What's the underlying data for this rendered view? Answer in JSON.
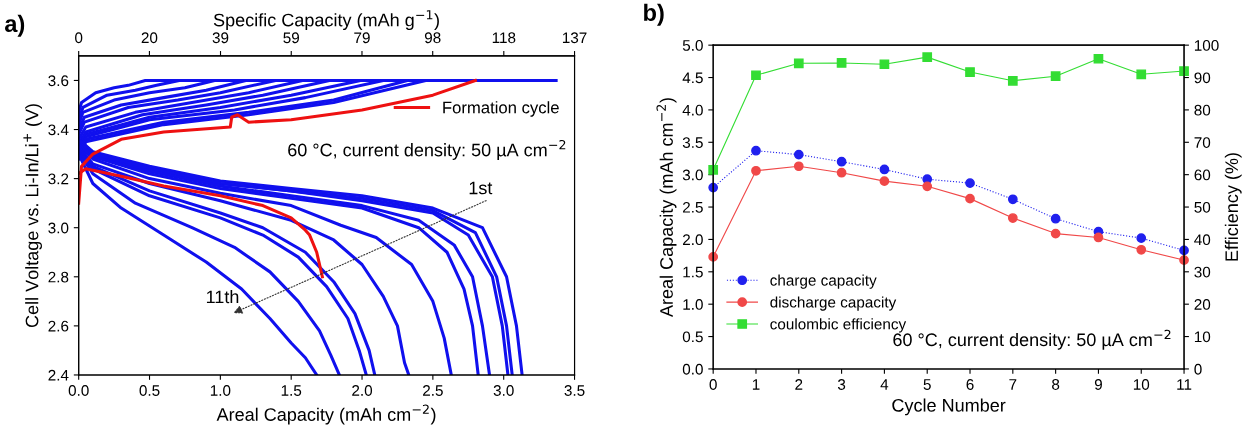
{
  "chart_data": [
    {
      "type": "line",
      "title": "a)",
      "xlabel": "Areal Capacity (mAh cm$^{−2}$)",
      "ylabel": "Cell Voltage vs. Li-In/Li$^{+}$ (V)",
      "x2label": "Specific Capacity (mAh g$^{−1}$)",
      "xlim": [
        0.0,
        3.5
      ],
      "xticks": [
        {
          "value": 0,
          "label": "0.0"
        },
        0.5,
        {
          "value": 1,
          "label": "1.0"
        },
        1.5,
        {
          "value": 2,
          "label": "2.0"
        },
        2.5,
        {
          "value": 3,
          "label": "3.0"
        },
        3.5
      ],
      "x2lim": [
        0,
        137.4
      ],
      "x2ticks": [
        0,
        {
          "value": 19.6,
          "label": "20"
        },
        {
          "value": 39.3,
          "label": "39"
        },
        {
          "value": 58.9,
          "label": "59"
        },
        {
          "value": 78.5,
          "label": "79"
        },
        {
          "value": 98.1,
          "label": "98"
        },
        {
          "value": 117.8,
          "label": "118"
        },
        {
          "value": 137.4,
          "label": "137"
        }
      ],
      "ylim": [
        2.4,
        3.7
      ],
      "yticks": [
        2.4,
        2.6,
        2.8,
        {
          "value": 3,
          "label": "3.0"
        },
        3.2,
        3.4,
        3.6
      ],
      "legend": "top right",
      "grid": false,
      "line_style": "solid",
      "annotations": [
        "60 °C, current density: 50 µA cm$^{−2}$",
        "1st",
        "11th"
      ],
      "series": [
        {
          "color": "#1010ee",
          "x": [
            0,
            0.05,
            0.6,
            1.2,
            1.8,
            2.45,
            3.37
          ],
          "values": [
            3.28,
            3.35,
            3.42,
            3.46,
            3.51,
            3.6,
            3.6
          ]
        },
        {
          "color": "#1010ee",
          "x": [
            0,
            0.05,
            0.6,
            1.2,
            1.8,
            2.32,
            3.31
          ],
          "values": [
            3.3,
            3.36,
            3.43,
            3.47,
            3.52,
            3.6,
            3.6
          ]
        },
        {
          "color": "#1010ee",
          "x": [
            0,
            0.05,
            0.5,
            1.1,
            1.6,
            2.15,
            3.2
          ],
          "values": [
            3.31,
            3.37,
            3.44,
            3.48,
            3.53,
            3.6,
            3.6
          ]
        },
        {
          "color": "#1010ee",
          "x": [
            0,
            0.05,
            0.5,
            1.0,
            1.5,
            1.99,
            3.08
          ],
          "values": [
            3.33,
            3.38,
            3.45,
            3.49,
            3.54,
            3.6,
            3.6
          ]
        },
        {
          "color": "#1010ee",
          "x": [
            0,
            0.05,
            0.45,
            0.9,
            1.3,
            1.77,
            2.93
          ],
          "values": [
            3.34,
            3.39,
            3.46,
            3.5,
            3.54,
            3.6,
            3.6
          ]
        },
        {
          "color": "#1010ee",
          "x": [
            0,
            0.05,
            0.4,
            0.8,
            1.2,
            1.58,
            2.87
          ],
          "values": [
            3.36,
            3.41,
            3.47,
            3.51,
            3.55,
            3.6,
            3.6
          ]
        },
        {
          "color": "#1010ee",
          "x": [
            0,
            0.04,
            0.35,
            0.7,
            1.0,
            1.39,
            2.62
          ],
          "values": [
            3.38,
            3.43,
            3.49,
            3.52,
            3.55,
            3.6,
            3.6
          ]
        },
        {
          "color": "#1010ee",
          "x": [
            0,
            0.04,
            0.3,
            0.6,
            0.9,
            1.18,
            2.32
          ],
          "values": [
            3.4,
            3.45,
            3.5,
            3.53,
            3.56,
            3.6,
            3.6
          ]
        },
        {
          "color": "#1010ee",
          "x": [
            0,
            0.03,
            0.25,
            0.5,
            0.75,
            0.96,
            2.12
          ],
          "values": [
            3.42,
            3.47,
            3.52,
            3.55,
            3.57,
            3.6,
            3.6
          ]
        },
        {
          "color": "#1010ee",
          "x": [
            0,
            0.03,
            0.2,
            0.4,
            0.55,
            0.71,
            2.02
          ],
          "values": [
            3.44,
            3.49,
            3.54,
            3.56,
            3.58,
            3.6,
            3.6
          ]
        },
        {
          "color": "#1010ee",
          "x": [
            0,
            0.02,
            0.12,
            0.25,
            0.35,
            0.47,
            1.83
          ],
          "values": [
            3.47,
            3.51,
            3.55,
            3.57,
            3.58,
            3.6,
            3.6
          ]
        },
        {
          "color": "#1010ee",
          "x": [
            0,
            0.1,
            0.5,
            1.0,
            1.5,
            2.0,
            2.5,
            2.8,
            2.95,
            3.02,
            3.06
          ],
          "values": [
            3.36,
            3.3,
            3.24,
            3.18,
            3.15,
            3.12,
            3.07,
            2.98,
            2.8,
            2.6,
            2.4
          ]
        },
        {
          "color": "#1010ee",
          "x": [
            0,
            0.1,
            0.5,
            1.0,
            1.5,
            2.0,
            2.5,
            2.85,
            3.02,
            3.09,
            3.13
          ],
          "values": [
            3.36,
            3.31,
            3.25,
            3.19,
            3.16,
            3.13,
            3.08,
            3.0,
            2.8,
            2.6,
            2.4
          ]
        },
        {
          "color": "#1010ee",
          "x": [
            0,
            0.1,
            0.5,
            1.0,
            1.5,
            2.0,
            2.5,
            2.75,
            2.92,
            2.99,
            3.03
          ],
          "values": [
            3.36,
            3.3,
            3.24,
            3.18,
            3.15,
            3.11,
            3.06,
            2.97,
            2.8,
            2.6,
            2.4
          ]
        },
        {
          "color": "#1010ee",
          "x": [
            0,
            0.1,
            0.5,
            1.0,
            1.5,
            2.0,
            2.4,
            2.65,
            2.78,
            2.85,
            2.9
          ],
          "values": [
            3.35,
            3.29,
            3.23,
            3.17,
            3.13,
            3.09,
            3.03,
            2.93,
            2.8,
            2.6,
            2.4
          ]
        },
        {
          "color": "#1010ee",
          "x": [
            0,
            0.1,
            0.5,
            1.0,
            1.5,
            2.0,
            2.4,
            2.6,
            2.72,
            2.78,
            2.82
          ],
          "values": [
            3.35,
            3.29,
            3.22,
            3.16,
            3.12,
            3.08,
            3.0,
            2.9,
            2.75,
            2.6,
            2.4
          ]
        },
        {
          "color": "#1010ee",
          "x": [
            0,
            0.1,
            0.5,
            1.0,
            1.5,
            1.85,
            2.1,
            2.35,
            2.5,
            2.58,
            2.63
          ],
          "values": [
            3.34,
            3.28,
            3.2,
            3.14,
            3.09,
            3.01,
            2.96,
            2.85,
            2.7,
            2.55,
            2.4
          ]
        },
        {
          "color": "#1010ee",
          "x": [
            0,
            0.1,
            0.5,
            1.0,
            1.5,
            1.8,
            2.0,
            2.15,
            2.25,
            2.3,
            2.33
          ],
          "values": [
            3.33,
            3.26,
            3.18,
            3.11,
            3.03,
            2.95,
            2.85,
            2.72,
            2.6,
            2.45,
            2.4
          ]
        },
        {
          "color": "#1010ee",
          "x": [
            0,
            0.1,
            0.5,
            1.0,
            1.3,
            1.6,
            1.8,
            1.95,
            2.05,
            2.09
          ],
          "values": [
            3.33,
            3.25,
            3.15,
            3.06,
            3.0,
            2.9,
            2.78,
            2.65,
            2.5,
            2.4
          ]
        },
        {
          "color": "#1010ee",
          "x": [
            0,
            0.1,
            0.5,
            1.0,
            1.3,
            1.55,
            1.75,
            1.9,
            1.98,
            2.03
          ],
          "values": [
            3.32,
            3.24,
            3.13,
            3.04,
            2.97,
            2.88,
            2.76,
            2.63,
            2.5,
            2.4
          ]
        },
        {
          "color": "#1010ee",
          "x": [
            0,
            0.1,
            0.4,
            0.8,
            1.1,
            1.35,
            1.55,
            1.7,
            1.78,
            1.84
          ],
          "values": [
            3.31,
            3.22,
            3.1,
            3.0,
            2.92,
            2.82,
            2.7,
            2.58,
            2.48,
            2.4
          ]
        },
        {
          "color": "#1010ee",
          "x": [
            0,
            0.1,
            0.3,
            0.6,
            0.9,
            1.15,
            1.35,
            1.5,
            1.6,
            1.68
          ],
          "values": [
            3.3,
            3.18,
            3.08,
            2.97,
            2.86,
            2.75,
            2.63,
            2.53,
            2.47,
            2.4
          ]
        },
        {
          "name": "Formation cycle",
          "color": "#ee1111",
          "x": [
            0,
            0.02,
            0.1,
            0.3,
            0.6,
            1.07,
            1.08,
            1.12,
            1.2,
            1.5,
            2.0,
            2.5,
            2.8
          ],
          "values": [
            3.1,
            3.25,
            3.3,
            3.36,
            3.39,
            3.41,
            3.45,
            3.46,
            3.43,
            3.44,
            3.48,
            3.54,
            3.6
          ]
        },
        {
          "color": "#ee1111",
          "x": [
            0,
            0.05,
            0.3,
            0.6,
            1.0,
            1.3,
            1.5,
            1.6,
            1.63,
            1.68,
            1.72
          ],
          "values": [
            3.22,
            3.24,
            3.21,
            3.17,
            3.13,
            3.09,
            3.04,
            2.99,
            2.97,
            2.9,
            2.8
          ]
        }
      ]
    },
    {
      "type": "line",
      "title": "b)",
      "xlabel": "Cycle Number",
      "ylabel": "Areal Capacity (mAh cm$^{−2}$)",
      "y2label": "Efficiency (%)",
      "x": [
        0,
        1,
        2,
        3,
        4,
        5,
        6,
        7,
        8,
        9,
        10,
        11
      ],
      "xlim": [
        0,
        11
      ],
      "xticks": [
        0,
        1,
        2,
        3,
        4,
        5,
        6,
        7,
        8,
        9,
        10,
        11
      ],
      "ylim": [
        0.0,
        5.0
      ],
      "yticks": [
        {
          "value": 0,
          "label": "0.0"
        },
        0.5,
        {
          "value": 1,
          "label": "1.0"
        },
        1.5,
        {
          "value": 2,
          "label": "2.0"
        },
        2.5,
        {
          "value": 3,
          "label": "3.0"
        },
        3.5,
        {
          "value": 4,
          "label": "4.0"
        },
        4.5,
        {
          "value": 5,
          "label": "5.0"
        }
      ],
      "y2lim": [
        0,
        100
      ],
      "y2ticks": [
        0,
        10,
        20,
        30,
        40,
        50,
        60,
        70,
        80,
        90,
        100
      ],
      "legend": "bottom left",
      "grid": false,
      "annotations": [
        "60 °C, current density: 50 µA cm$^{−2}$"
      ],
      "series": [
        {
          "name": "charge capacity",
          "color": "#2020ee",
          "marker": "circle",
          "line_style": "dotted",
          "values": [
            2.8,
            3.37,
            3.31,
            3.2,
            3.08,
            2.93,
            2.87,
            2.62,
            2.32,
            2.12,
            2.02,
            1.83
          ]
        },
        {
          "name": "discharge capacity",
          "color": "#f04848",
          "marker": "circle",
          "line_style": "solid",
          "values": [
            1.73,
            3.06,
            3.13,
            3.03,
            2.9,
            2.82,
            2.63,
            2.33,
            2.09,
            2.03,
            1.84,
            1.68
          ]
        },
        {
          "name": "coulombic efficiency",
          "color": "#33dd33",
          "marker": "square",
          "line_style": "solid",
          "axis": "y2",
          "values": [
            61.5,
            90.7,
            94.4,
            94.5,
            94.1,
            96.3,
            91.7,
            89.0,
            90.4,
            95.8,
            91.0,
            92.0
          ]
        }
      ]
    }
  ]
}
